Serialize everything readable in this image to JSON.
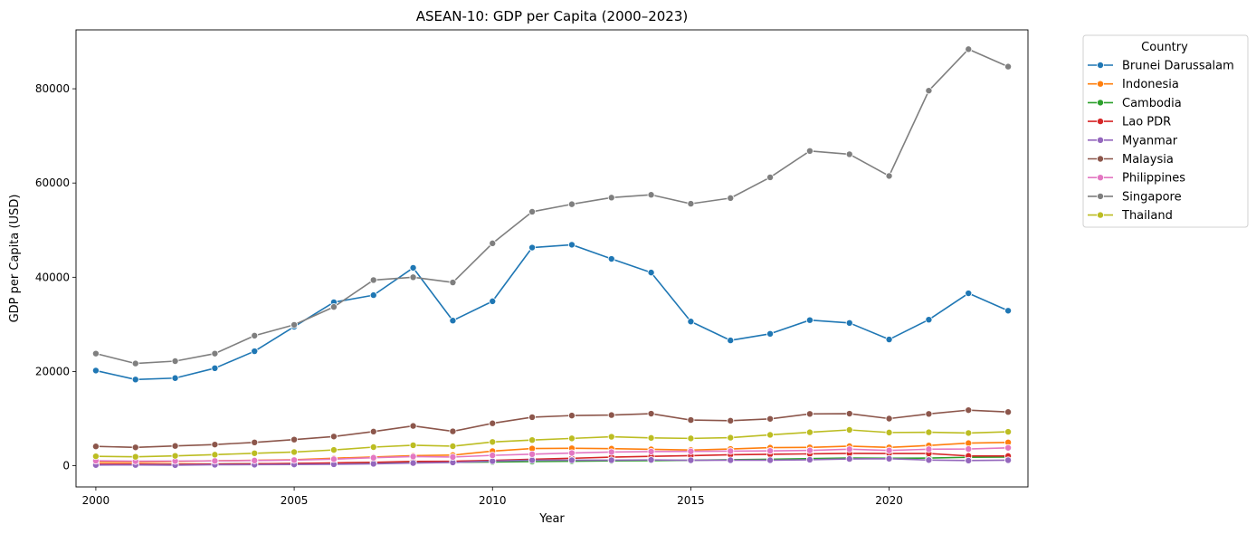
{
  "chart_data": {
    "type": "line",
    "title": "ASEAN-10: GDP per Capita (2000–2023)",
    "xlabel": "Year",
    "ylabel": "GDP per Capita (USD)",
    "xlim": [
      1999.5,
      2023.5
    ],
    "ylim": [
      -4500,
      92500
    ],
    "xticks": [
      2000,
      2005,
      2010,
      2015,
      2020
    ],
    "yticks": [
      0,
      20000,
      40000,
      60000,
      80000
    ],
    "grid": false,
    "legend": {
      "title": "Country",
      "placement": "outside-top-right"
    },
    "x": [
      2000,
      2001,
      2002,
      2003,
      2004,
      2005,
      2006,
      2007,
      2008,
      2009,
      2010,
      2011,
      2012,
      2013,
      2014,
      2015,
      2016,
      2017,
      2018,
      2019,
      2020,
      2021,
      2022,
      2023
    ],
    "series": [
      {
        "name": "Brunei Darussalam",
        "color": "#1f77b4",
        "values": [
          20200,
          18300,
          18600,
          20700,
          24300,
          29500,
          34700,
          36200,
          42000,
          30800,
          34900,
          46300,
          46900,
          43900,
          41000,
          30600,
          26600,
          28000,
          30900,
          30300,
          26800,
          31000,
          36600,
          32900
        ]
      },
      {
        "name": "Indonesia",
        "color": "#ff7f0e",
        "values": [
          800,
          750,
          900,
          1050,
          1150,
          1270,
          1600,
          1850,
          2150,
          2250,
          3100,
          3650,
          3700,
          3620,
          3490,
          3330,
          3560,
          3840,
          3900,
          4150,
          3900,
          4300,
          4800,
          4950
        ]
      },
      {
        "name": "Cambodia",
        "color": "#2ca02c",
        "values": [
          300,
          320,
          340,
          360,
          410,
          470,
          540,
          630,
          740,
          730,
          780,
          880,
          950,
          1020,
          1090,
          1160,
          1270,
          1380,
          1510,
          1640,
          1580,
          1630,
          1790,
          1850
        ]
      },
      {
        "name": "Lao PDR",
        "color": "#d62728",
        "values": [
          330,
          330,
          310,
          360,
          420,
          480,
          610,
          730,
          910,
          950,
          1140,
          1380,
          1580,
          1830,
          1990,
          2130,
          2340,
          2420,
          2520,
          2610,
          2600,
          2590,
          2080,
          2060
        ]
      },
      {
        "name": "Myanmar",
        "color": "#9467bd",
        "values": [
          150,
          170,
          130,
          210,
          230,
          270,
          310,
          410,
          570,
          690,
          980,
          1170,
          1180,
          1180,
          1240,
          1160,
          1170,
          1170,
          1270,
          1440,
          1490,
          1210,
          1100,
          1180
        ]
      },
      {
        "name": "Malaysia",
        "color": "#8c564b",
        "values": [
          4100,
          3900,
          4200,
          4500,
          4950,
          5550,
          6200,
          7250,
          8450,
          7300,
          9000,
          10300,
          10650,
          10750,
          11050,
          9700,
          9550,
          9950,
          11000,
          11050,
          10000,
          11000,
          11800,
          11400
        ]
      },
      {
        "name": "Philippines",
        "color": "#e377c2",
        "values": [
          1050,
          960,
          1000,
          1020,
          1100,
          1200,
          1400,
          1700,
          1950,
          1850,
          2200,
          2450,
          2700,
          2900,
          3000,
          3050,
          3100,
          3150,
          3250,
          3500,
          3250,
          3500,
          3550,
          3800
        ]
      },
      {
        "name": "Singapore",
        "color": "#7f7f7f",
        "values": [
          23800,
          21700,
          22200,
          23800,
          27600,
          29900,
          33700,
          39400,
          40000,
          38900,
          47200,
          53900,
          55500,
          56900,
          57500,
          55600,
          56800,
          61200,
          66800,
          66100,
          61500,
          79600,
          88400,
          84700
        ]
      },
      {
        "name": "Thailand",
        "color": "#bcbd22",
        "values": [
          2000,
          1900,
          2100,
          2350,
          2650,
          2900,
          3350,
          3950,
          4350,
          4150,
          5050,
          5450,
          5800,
          6150,
          5900,
          5800,
          5950,
          6550,
          7100,
          7600,
          7050,
          7100,
          6950,
          7200
        ]
      }
    ]
  }
}
